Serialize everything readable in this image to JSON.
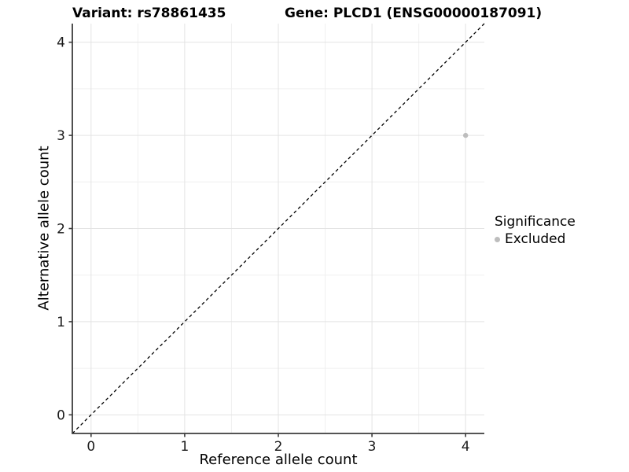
{
  "titles": {
    "variant": "Variant: rs78861435",
    "gene": "Gene: PLCD1 (ENSG00000187091)"
  },
  "legend": {
    "title": "Significance",
    "items": [
      {
        "label": "Excluded",
        "color": "#bdbdbd"
      }
    ]
  },
  "colors": {
    "background": "#ffffff",
    "grid_major": "#e3e3e3",
    "grid_minor": "#f0f0f0",
    "axis_line": "#3d3d3d",
    "tick_text": "#1a1a1a",
    "reference_line": "#000000",
    "point": "#bdbdbd"
  },
  "chart_data": {
    "type": "scatter",
    "title_left": "Variant: rs78861435",
    "title_right": "Gene: PLCD1 (ENSG00000187091)",
    "xlabel": "Reference allele count",
    "ylabel": "Alternative allele count",
    "xlim": [
      -0.2,
      4.2
    ],
    "ylim": [
      -0.2,
      4.2
    ],
    "x_ticks": [
      0,
      1,
      2,
      3,
      4
    ],
    "y_ticks": [
      0,
      1,
      2,
      3,
      4
    ],
    "x_minor_ticks": [
      0.5,
      1.5,
      2.5,
      3.5
    ],
    "y_minor_ticks": [
      0.5,
      1.5,
      2.5,
      3.5
    ],
    "grid": true,
    "legend_position": "right",
    "series": [
      {
        "name": "Excluded",
        "color": "#bdbdbd",
        "points": [
          {
            "x": 4,
            "y": 3
          }
        ]
      }
    ],
    "reference_line": {
      "type": "abline",
      "slope": 1,
      "intercept": 0,
      "style": "dashed",
      "color": "#000000"
    }
  }
}
